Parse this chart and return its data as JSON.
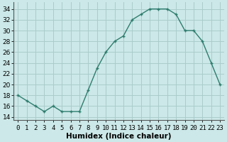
{
  "x": [
    0,
    1,
    2,
    3,
    4,
    5,
    6,
    7,
    8,
    9,
    10,
    11,
    12,
    13,
    14,
    15,
    16,
    17,
    18,
    19,
    20,
    21,
    22,
    23
  ],
  "y": [
    18,
    17,
    16,
    15,
    16,
    15,
    15,
    15,
    19,
    23,
    26,
    28,
    29,
    32,
    33,
    34,
    34,
    34,
    33,
    30,
    30,
    28,
    24,
    20
  ],
  "line_color": "#2e7d6e",
  "marker": "+",
  "marker_color": "#2e7d6e",
  "bg_color": "#cce8e8",
  "grid_color": "#aacccc",
  "xlabel": "Humidex (Indice chaleur)",
  "xlabel_fontsize": 7.5,
  "yticks": [
    14,
    16,
    18,
    20,
    22,
    24,
    26,
    28,
    30,
    32,
    34
  ],
  "xlim": [
    -0.5,
    23.5
  ],
  "ylim": [
    13.5,
    35.2
  ],
  "tick_fontsize": 6.5,
  "linewidth": 1.0,
  "markersize": 3.5,
  "markeredgewidth": 1.0
}
